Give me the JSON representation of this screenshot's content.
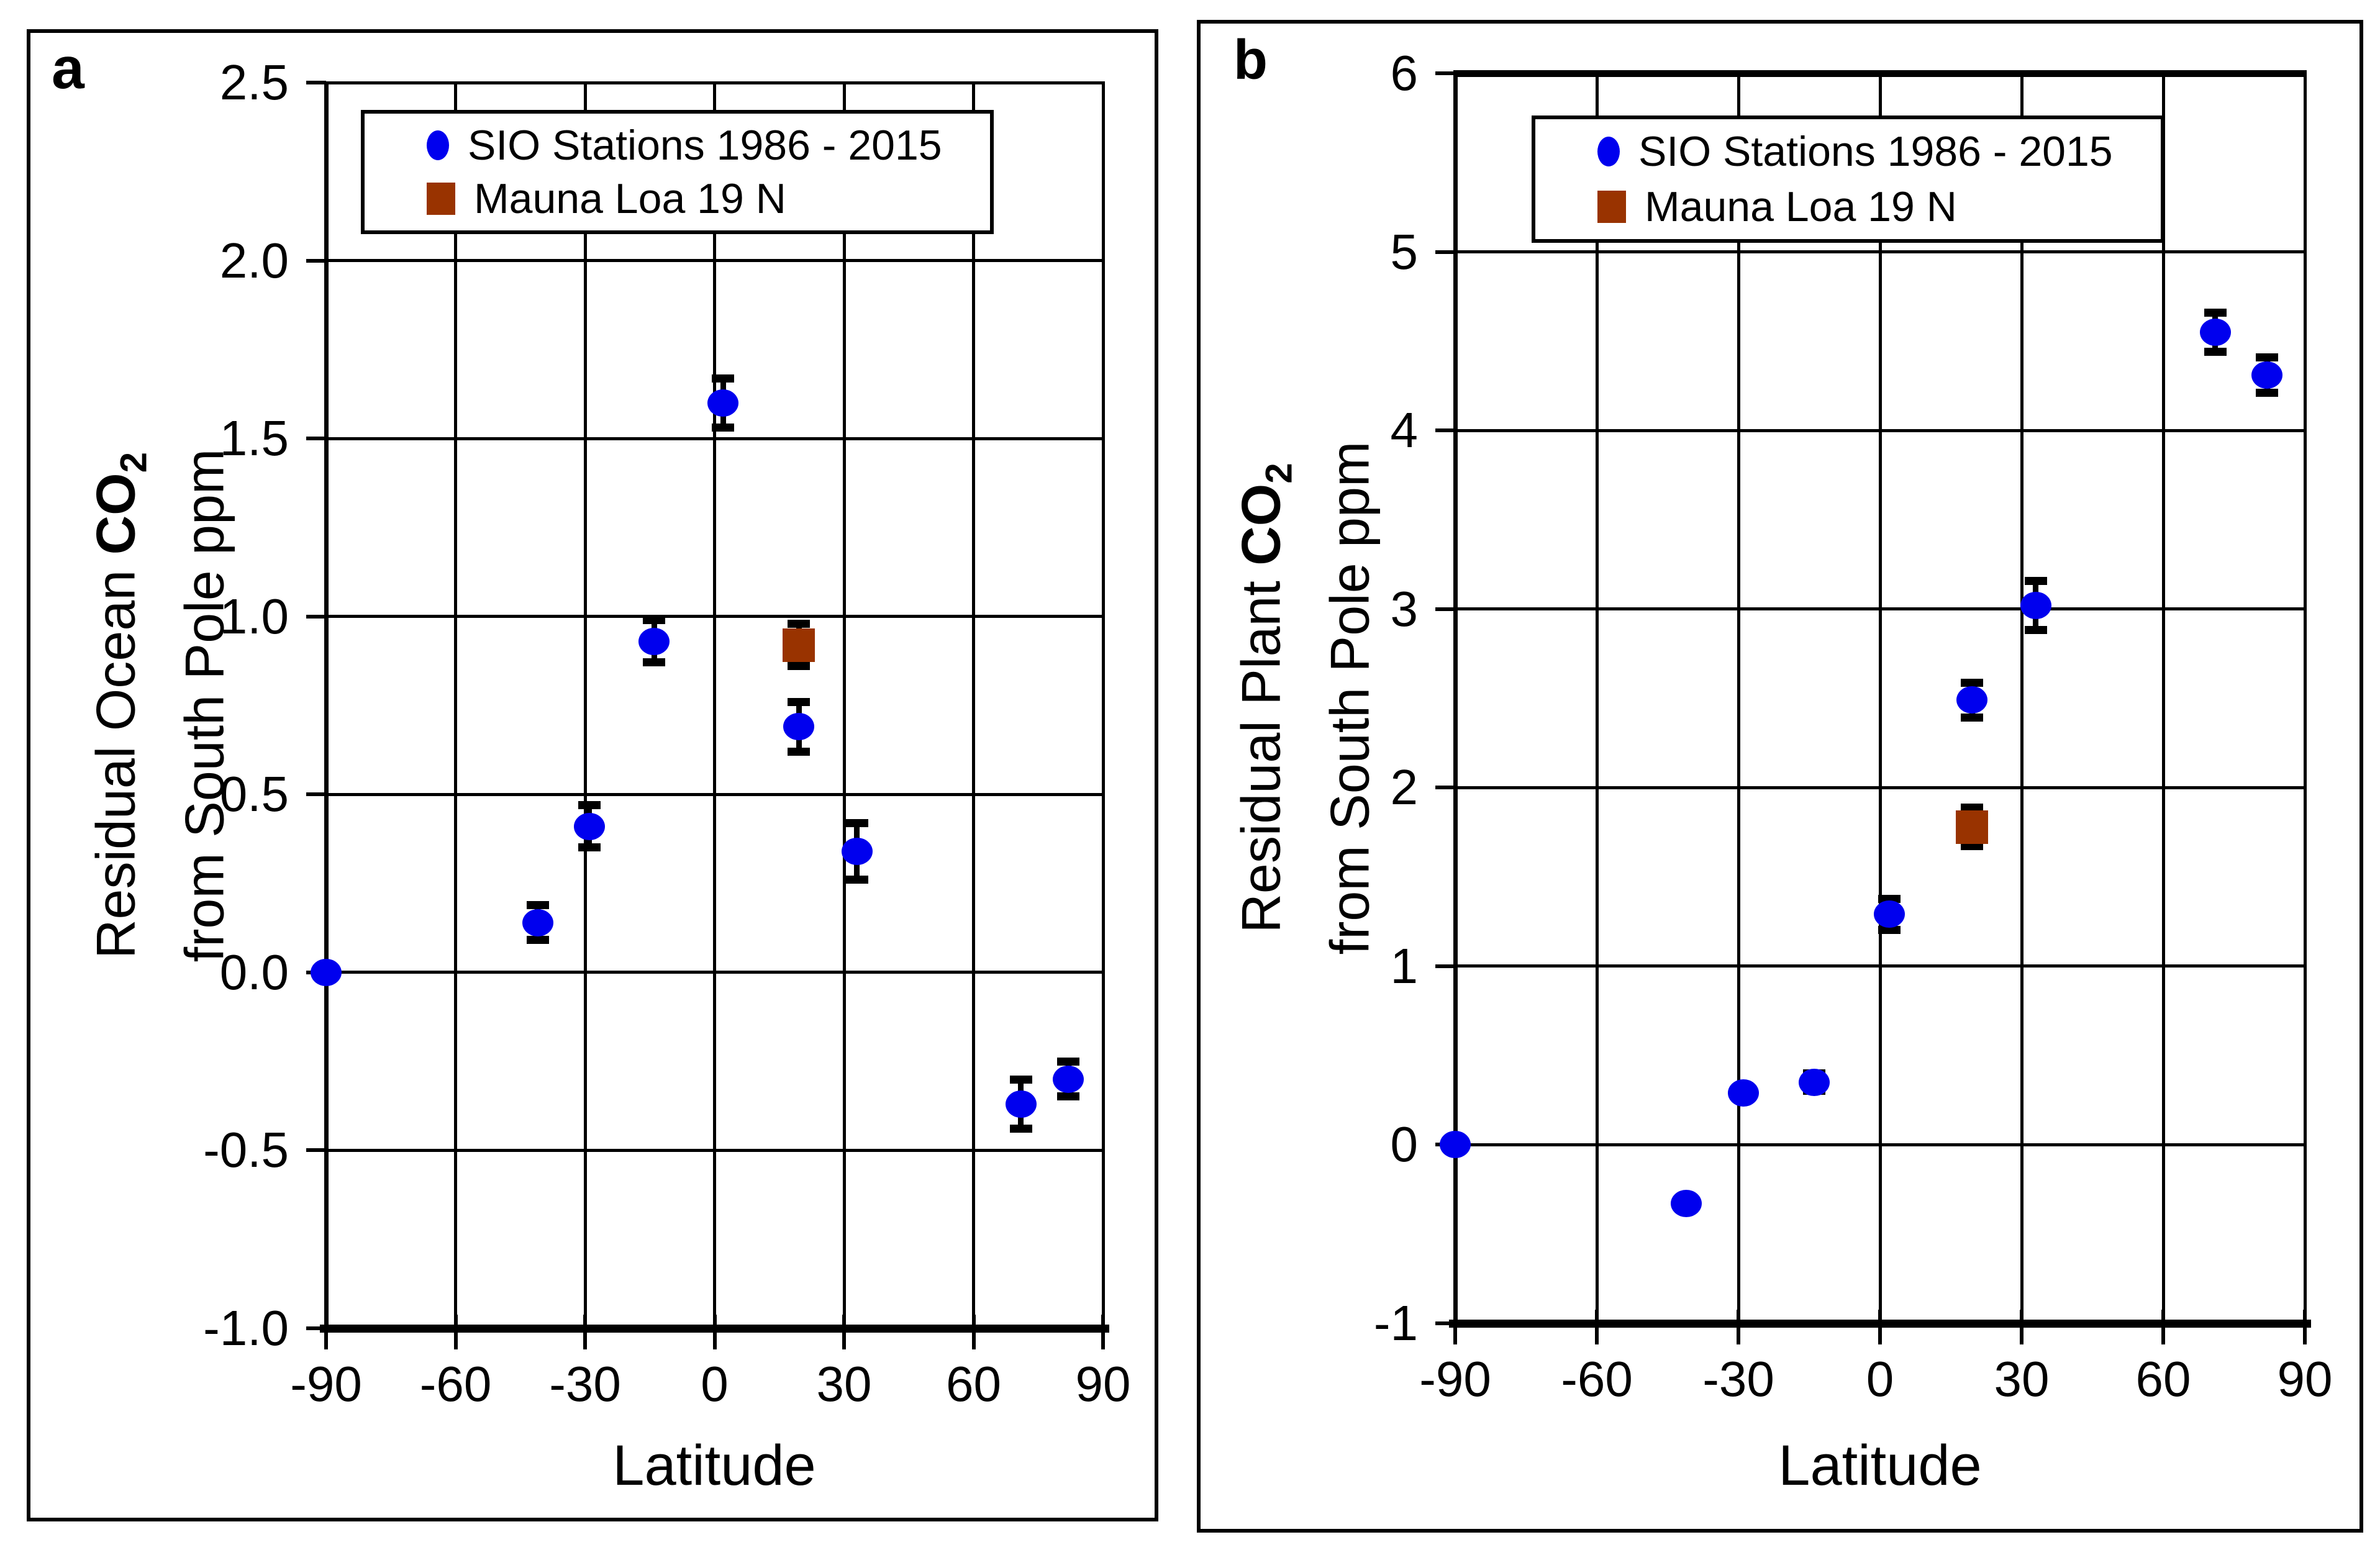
{
  "chart_data": {
    "type": "scatter",
    "legend": {
      "sio_label": "SIO Stations 1986 - 2015",
      "mauna_loa_label": "Mauna Loa 19 N"
    },
    "colors": {
      "sio": "#0000EE",
      "mauna_loa": "#993300",
      "axis": "#000000"
    },
    "panels": [
      {
        "corner_label": "a",
        "xlabel": "Latitude",
        "ylabel": {
          "prefix": "Residual Ocean ",
          "co2": "CO",
          "co2_sub": "2",
          "line2": "from South Pole ppm"
        },
        "xlim": [
          -90,
          90
        ],
        "ylim": [
          -1.0,
          2.5
        ],
        "xticks": [
          -90,
          -60,
          -30,
          0,
          30,
          60,
          90
        ],
        "xtick_labels": [
          "-90",
          "-60",
          "-30",
          "0",
          "30",
          "60",
          "90"
        ],
        "ytick_values": [
          2.5,
          2.0,
          1.5,
          1.0,
          0.5,
          0.0,
          -0.5,
          -1.0
        ],
        "ytick_labels": [
          "2.5",
          "2.0",
          "1.5",
          "1.0",
          "0.5",
          "0.0",
          "-0.5",
          "-1.0"
        ],
        "grid": true,
        "series": [
          {
            "name": "SIO Stations 1986 - 2015",
            "marker": "circle",
            "points": [
              [
                -90,
                0.0,
                0
              ],
              [
                -41,
                0.14,
                0.05
              ],
              [
                -29,
                0.41,
                0.06
              ],
              [
                -14,
                0.93,
                0.06
              ],
              [
                2,
                1.6,
                0.07
              ],
              [
                19.5,
                0.69,
                0.07
              ],
              [
                33,
                0.34,
                0.08
              ],
              [
                71,
                -0.37,
                0.07
              ],
              [
                82,
                -0.3,
                0.05
              ]
            ]
          },
          {
            "name": "Mauna Loa 19 N",
            "marker": "square",
            "points": [
              [
                19.5,
                0.92,
                0.06
              ]
            ]
          }
        ]
      },
      {
        "corner_label": "b",
        "xlabel": "Latitude",
        "ylabel": {
          "prefix": "Residual Plant ",
          "co2": "CO",
          "co2_sub": "2",
          "line2": "from South Pole ppm"
        },
        "xlim": [
          -90,
          90
        ],
        "ylim": [
          -1,
          6
        ],
        "xticks": [
          -90,
          -60,
          -30,
          0,
          30,
          60,
          90
        ],
        "xtick_labels": [
          "-90",
          "-60",
          "-30",
          "0",
          "30",
          "60",
          "90"
        ],
        "ytick_values": [
          6,
          5,
          4,
          3,
          2,
          1,
          0,
          -1
        ],
        "ytick_labels": [
          "6",
          "5",
          "4",
          "3",
          "2",
          "1",
          "0",
          "-1"
        ],
        "grid": true,
        "series": [
          {
            "name": "SIO Stations 1986 - 2015",
            "marker": "circle",
            "points": [
              [
                -90,
                0.0,
                0
              ],
              [
                -41,
                -0.33,
                0
              ],
              [
                -29,
                0.29,
                0
              ],
              [
                -14,
                0.35,
                0.05
              ],
              [
                2,
                1.29,
                0.09
              ],
              [
                19.5,
                2.49,
                0.1
              ],
              [
                33,
                3.02,
                0.14
              ],
              [
                71,
                4.55,
                0.11
              ],
              [
                82,
                4.31,
                0.1
              ]
            ]
          },
          {
            "name": "Mauna Loa 19 N",
            "marker": "square",
            "points": [
              [
                19.5,
                1.78,
                0.11
              ]
            ]
          }
        ]
      }
    ]
  }
}
